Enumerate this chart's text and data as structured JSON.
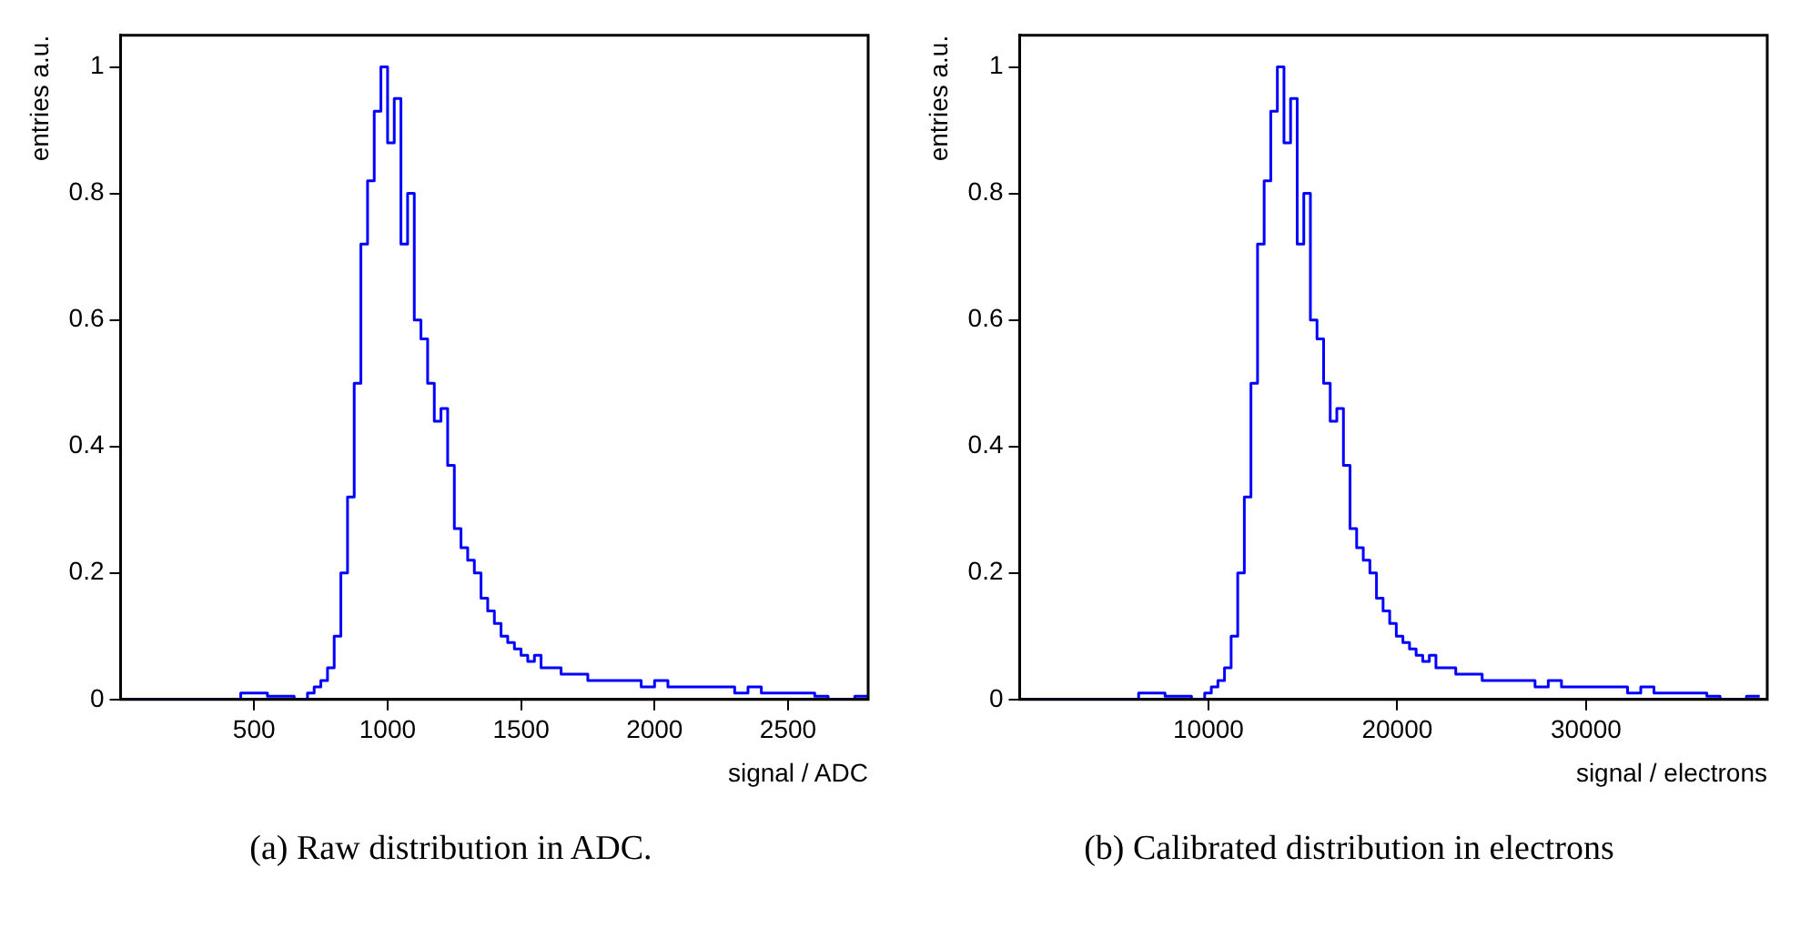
{
  "chart_data": [
    {
      "type": "histogram",
      "xlabel": "signal / ADC",
      "ylabel": "entries a.u.",
      "color": "#0000ff",
      "xlim": [
        0,
        2800
      ],
      "xticks": [
        500,
        1000,
        1500,
        2000,
        2500
      ],
      "ylim": [
        0,
        1.05
      ],
      "yticks": [
        0,
        0.2,
        0.4,
        0.6,
        0.8,
        1
      ],
      "annotations": [
        "(a) Raw distribution in ADC."
      ],
      "bins": [
        0,
        450,
        550,
        650,
        700,
        725,
        750,
        775,
        800,
        825,
        850,
        875,
        900,
        925,
        950,
        975,
        1000,
        1025,
        1050,
        1075,
        1100,
        1125,
        1150,
        1175,
        1200,
        1225,
        1250,
        1275,
        1300,
        1325,
        1350,
        1375,
        1400,
        1425,
        1450,
        1475,
        1500,
        1525,
        1550,
        1575,
        1600,
        1650,
        1700,
        1750,
        1800,
        1850,
        1900,
        1950,
        2000,
        2050,
        2100,
        2150,
        2200,
        2250,
        2300,
        2350,
        2400,
        2450,
        2500,
        2550,
        2600,
        2650,
        2700,
        2750,
        2800
      ],
      "values": [
        0,
        0.01,
        0.005,
        0,
        0.01,
        0.02,
        0.03,
        0.05,
        0.1,
        0.2,
        0.32,
        0.5,
        0.72,
        0.82,
        0.93,
        1.0,
        0.88,
        0.95,
        0.72,
        0.8,
        0.6,
        0.57,
        0.5,
        0.44,
        0.46,
        0.37,
        0.27,
        0.24,
        0.22,
        0.2,
        0.16,
        0.14,
        0.12,
        0.1,
        0.09,
        0.08,
        0.07,
        0.06,
        0.07,
        0.05,
        0.05,
        0.04,
        0.04,
        0.03,
        0.03,
        0.03,
        0.03,
        0.02,
        0.03,
        0.02,
        0.02,
        0.02,
        0.02,
        0.02,
        0.01,
        0.02,
        0.01,
        0.01,
        0.01,
        0.01,
        0.005,
        0,
        0,
        0.005
      ]
    },
    {
      "type": "histogram",
      "xlabel": "signal / electrons",
      "ylabel": "entries a.u.",
      "color": "#0000ff",
      "xlim": [
        0,
        39600
      ],
      "xticks": [
        10000,
        20000,
        30000
      ],
      "ylim": [
        0,
        1.05
      ],
      "yticks": [
        0,
        0.2,
        0.4,
        0.6,
        0.8,
        1
      ],
      "annotations": [
        "(b) Calibrated distribution in electrons"
      ],
      "bins": [
        0,
        6300,
        7700,
        9100,
        9800,
        10150,
        10500,
        10850,
        11200,
        11550,
        11900,
        12250,
        12600,
        12950,
        13300,
        13650,
        14000,
        14350,
        14700,
        15050,
        15400,
        15750,
        16100,
        16450,
        16800,
        17150,
        17500,
        17850,
        18200,
        18550,
        18900,
        19250,
        19600,
        19950,
        20300,
        20650,
        21000,
        21350,
        21700,
        22050,
        22400,
        23100,
        23800,
        24500,
        25200,
        25900,
        26600,
        27300,
        28000,
        28700,
        29400,
        30100,
        30800,
        31500,
        32200,
        32900,
        33600,
        34300,
        35000,
        35700,
        36400,
        37100,
        37800,
        38500,
        39200
      ],
      "values": [
        0,
        0.01,
        0.005,
        0,
        0.01,
        0.02,
        0.03,
        0.05,
        0.1,
        0.2,
        0.32,
        0.5,
        0.72,
        0.82,
        0.93,
        1.0,
        0.88,
        0.95,
        0.72,
        0.8,
        0.6,
        0.57,
        0.5,
        0.44,
        0.46,
        0.37,
        0.27,
        0.24,
        0.22,
        0.2,
        0.16,
        0.14,
        0.12,
        0.1,
        0.09,
        0.08,
        0.07,
        0.06,
        0.07,
        0.05,
        0.05,
        0.04,
        0.04,
        0.03,
        0.03,
        0.03,
        0.03,
        0.02,
        0.03,
        0.02,
        0.02,
        0.02,
        0.02,
        0.02,
        0.01,
        0.02,
        0.01,
        0.01,
        0.01,
        0.01,
        0.005,
        0,
        0,
        0.005
      ]
    }
  ]
}
